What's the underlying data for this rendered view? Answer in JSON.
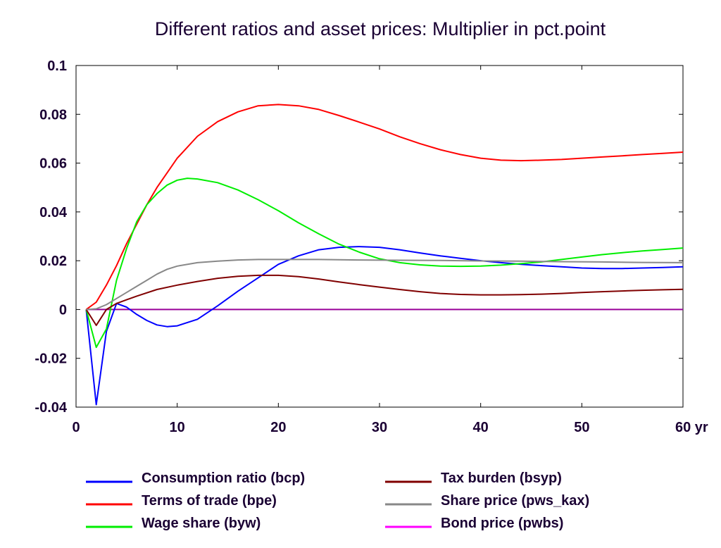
{
  "chart_data": {
    "type": "line",
    "title": "Different ratios and asset prices: Multiplier in pct.point",
    "xlabel": "",
    "ylabel": "",
    "xlim": [
      0,
      60
    ],
    "ylim": [
      -0.04,
      0.1
    ],
    "x_ticks": [
      {
        "value": 0,
        "label": "0"
      },
      {
        "value": 10,
        "label": "10"
      },
      {
        "value": 20,
        "label": "20"
      },
      {
        "value": 30,
        "label": "30"
      },
      {
        "value": 40,
        "label": "40"
      },
      {
        "value": 50,
        "label": "50"
      },
      {
        "value": 60,
        "label": "60 yr"
      }
    ],
    "y_ticks": [
      {
        "value": -0.04,
        "label": "-0.04"
      },
      {
        "value": -0.02,
        "label": "-0.02"
      },
      {
        "value": 0,
        "label": "0"
      },
      {
        "value": 0.02,
        "label": "0.02"
      },
      {
        "value": 0.04,
        "label": "0.04"
      },
      {
        "value": 0.06,
        "label": "0.06"
      },
      {
        "value": 0.08,
        "label": "0.08"
      },
      {
        "value": 0.1,
        "label": "0.1"
      }
    ],
    "grid": false,
    "legend_position": "bottom",
    "series": [
      {
        "name": "Consumption ratio (bcp)",
        "color": "#0000ff",
        "x": [
          1,
          2,
          3,
          4,
          5,
          6,
          7,
          8,
          9,
          10,
          12,
          14,
          16,
          18,
          20,
          22,
          24,
          26,
          28,
          30,
          32,
          34,
          36,
          38,
          40,
          42,
          44,
          46,
          48,
          50,
          52,
          54,
          56,
          58,
          60
        ],
        "y": [
          0,
          -0.039,
          -0.009,
          0.0025,
          0.001,
          -0.002,
          -0.0045,
          -0.0063,
          -0.007,
          -0.0067,
          -0.004,
          0.0015,
          0.0075,
          0.013,
          0.0185,
          0.022,
          0.0245,
          0.0255,
          0.0258,
          0.0255,
          0.0245,
          0.0232,
          0.022,
          0.021,
          0.02,
          0.0192,
          0.0185,
          0.018,
          0.0175,
          0.017,
          0.0168,
          0.0168,
          0.017,
          0.0172,
          0.0175
        ]
      },
      {
        "name": "Terms of trade (bpe)",
        "color": "#ff0000",
        "x": [
          1,
          2,
          3,
          4,
          5,
          6,
          7,
          8,
          9,
          10,
          12,
          14,
          16,
          18,
          20,
          22,
          24,
          26,
          28,
          30,
          32,
          34,
          36,
          38,
          40,
          42,
          44,
          46,
          48,
          50,
          52,
          54,
          56,
          58,
          60
        ],
        "y": [
          0,
          0.003,
          0.01,
          0.018,
          0.027,
          0.035,
          0.043,
          0.05,
          0.056,
          0.062,
          0.071,
          0.077,
          0.081,
          0.0835,
          0.084,
          0.0835,
          0.082,
          0.0795,
          0.0768,
          0.074,
          0.0708,
          0.068,
          0.0655,
          0.0635,
          0.062,
          0.0612,
          0.061,
          0.0612,
          0.0615,
          0.062,
          0.0625,
          0.063,
          0.0635,
          0.064,
          0.0645
        ]
      },
      {
        "name": "Wage share (byw)",
        "color": "#00ee00",
        "x": [
          1,
          2,
          3,
          4,
          5,
          6,
          7,
          8,
          9,
          10,
          11,
          12,
          14,
          16,
          18,
          20,
          22,
          24,
          26,
          28,
          30,
          32,
          34,
          36,
          38,
          40,
          42,
          44,
          46,
          48,
          50,
          52,
          54,
          56,
          58,
          60
        ],
        "y": [
          0,
          -0.0155,
          -0.008,
          0.012,
          0.025,
          0.036,
          0.043,
          0.0475,
          0.051,
          0.053,
          0.0538,
          0.0535,
          0.052,
          0.049,
          0.045,
          0.0405,
          0.0355,
          0.031,
          0.0268,
          0.0235,
          0.0208,
          0.0192,
          0.0183,
          0.0178,
          0.0177,
          0.0178,
          0.0182,
          0.0188,
          0.0195,
          0.0205,
          0.0215,
          0.0225,
          0.0233,
          0.024,
          0.0246,
          0.0252
        ]
      },
      {
        "name": "Tax burden (bsyp)",
        "color": "#800000",
        "x": [
          1,
          2,
          3,
          4,
          5,
          6,
          8,
          10,
          12,
          14,
          16,
          18,
          20,
          22,
          24,
          26,
          28,
          30,
          32,
          34,
          36,
          38,
          40,
          42,
          44,
          46,
          48,
          50,
          52,
          54,
          56,
          58,
          60
        ],
        "y": [
          0,
          -0.0065,
          0.0,
          0.0025,
          0.004,
          0.0055,
          0.0082,
          0.01,
          0.0115,
          0.0128,
          0.0136,
          0.014,
          0.014,
          0.0135,
          0.0125,
          0.0113,
          0.0102,
          0.0092,
          0.0082,
          0.0073,
          0.0066,
          0.0062,
          0.006,
          0.006,
          0.0061,
          0.0063,
          0.0066,
          0.007,
          0.0073,
          0.0076,
          0.0079,
          0.0081,
          0.0083
        ]
      },
      {
        "name": "Share price (pws_kax)",
        "color": "#888888",
        "x": [
          1,
          2,
          3,
          4,
          5,
          6,
          7,
          8,
          9,
          10,
          12,
          14,
          16,
          18,
          20,
          24,
          28,
          32,
          36,
          40,
          44,
          48,
          52,
          56,
          60
        ],
        "y": [
          0,
          0.0003,
          0.002,
          0.0045,
          0.007,
          0.0095,
          0.012,
          0.0145,
          0.0165,
          0.0178,
          0.0192,
          0.0198,
          0.0203,
          0.0205,
          0.0205,
          0.0205,
          0.0203,
          0.0202,
          0.0201,
          0.0199,
          0.0198,
          0.0196,
          0.0195,
          0.0193,
          0.0192
        ]
      },
      {
        "name": "Bond price (pwbs)",
        "color": "#ff00ff",
        "line_color": "#990099",
        "x": [
          1,
          60
        ],
        "y": [
          0,
          0
        ]
      }
    ]
  }
}
